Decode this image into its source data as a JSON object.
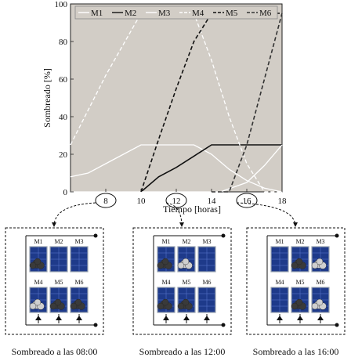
{
  "chart_data": {
    "type": "line",
    "xlabel": "Tiempo [horas]",
    "ylabel": "Sombreado [%]",
    "xlim": [
      6,
      18
    ],
    "ylim": [
      0,
      100
    ],
    "xticks": [
      8,
      10,
      12,
      14,
      16,
      18
    ],
    "yticks": [
      0,
      20,
      40,
      60,
      80,
      100
    ],
    "background": "#d2cdc6",
    "legend_position": "top",
    "series": [
      {
        "name": "M1",
        "color": "#ffffff",
        "dash": "solid",
        "x": [
          6,
          7,
          8,
          10,
          13,
          14,
          15,
          16,
          17,
          18
        ],
        "y": [
          8,
          10,
          15,
          25,
          25,
          20,
          12,
          6,
          2,
          0
        ]
      },
      {
        "name": "M2",
        "color": "#111111",
        "dash": "solid",
        "x": [
          10,
          11,
          12,
          13,
          14,
          18
        ],
        "y": [
          0,
          8,
          13,
          19,
          25,
          25
        ]
      },
      {
        "name": "M3",
        "color": "#ffffff",
        "dash": "solid",
        "x": [
          6,
          7,
          8,
          10,
          14.5,
          16,
          17,
          18
        ],
        "y": [
          0,
          0,
          0,
          0,
          0,
          5,
          14,
          25
        ]
      },
      {
        "name": "M4",
        "color": "#ffffff",
        "dash": "dashed",
        "x": [
          6,
          8,
          10,
          13,
          14,
          15,
          16,
          17,
          18
        ],
        "y": [
          25,
          62,
          95,
          95,
          70,
          40,
          15,
          0,
          0
        ]
      },
      {
        "name": "M5",
        "color": "#111111",
        "dash": "dashed",
        "x": [
          10,
          11,
          12,
          13,
          14,
          18
        ],
        "y": [
          0,
          28,
          55,
          80,
          95,
          95
        ]
      },
      {
        "name": "M6",
        "color": "#333333",
        "dash": "dashed",
        "x": [
          14,
          15,
          16,
          17,
          18
        ],
        "y": [
          0,
          0,
          25,
          60,
          95
        ]
      }
    ]
  },
  "highlighted_times": [
    "8",
    "12",
    "16"
  ],
  "panels": [
    {
      "caption": "Sombreado a las 08:00",
      "modules": [
        "M1",
        "M2",
        "M3",
        "M4",
        "M5",
        "M6"
      ]
    },
    {
      "caption": "Sombreado a las 12:00",
      "modules": [
        "M1",
        "M2",
        "M3",
        "M4",
        "M5",
        "M6"
      ]
    },
    {
      "caption": "Sombreado a las 16:00",
      "modules": [
        "M1",
        "M2",
        "M3",
        "M4",
        "M5",
        "M6"
      ]
    }
  ],
  "colors": {
    "panel_cell": "#1e3a8a",
    "panel_frame": "#9aa3b0",
    "cloud_dark": "#3a3a3a",
    "cloud_light": "#cfcfcf"
  }
}
